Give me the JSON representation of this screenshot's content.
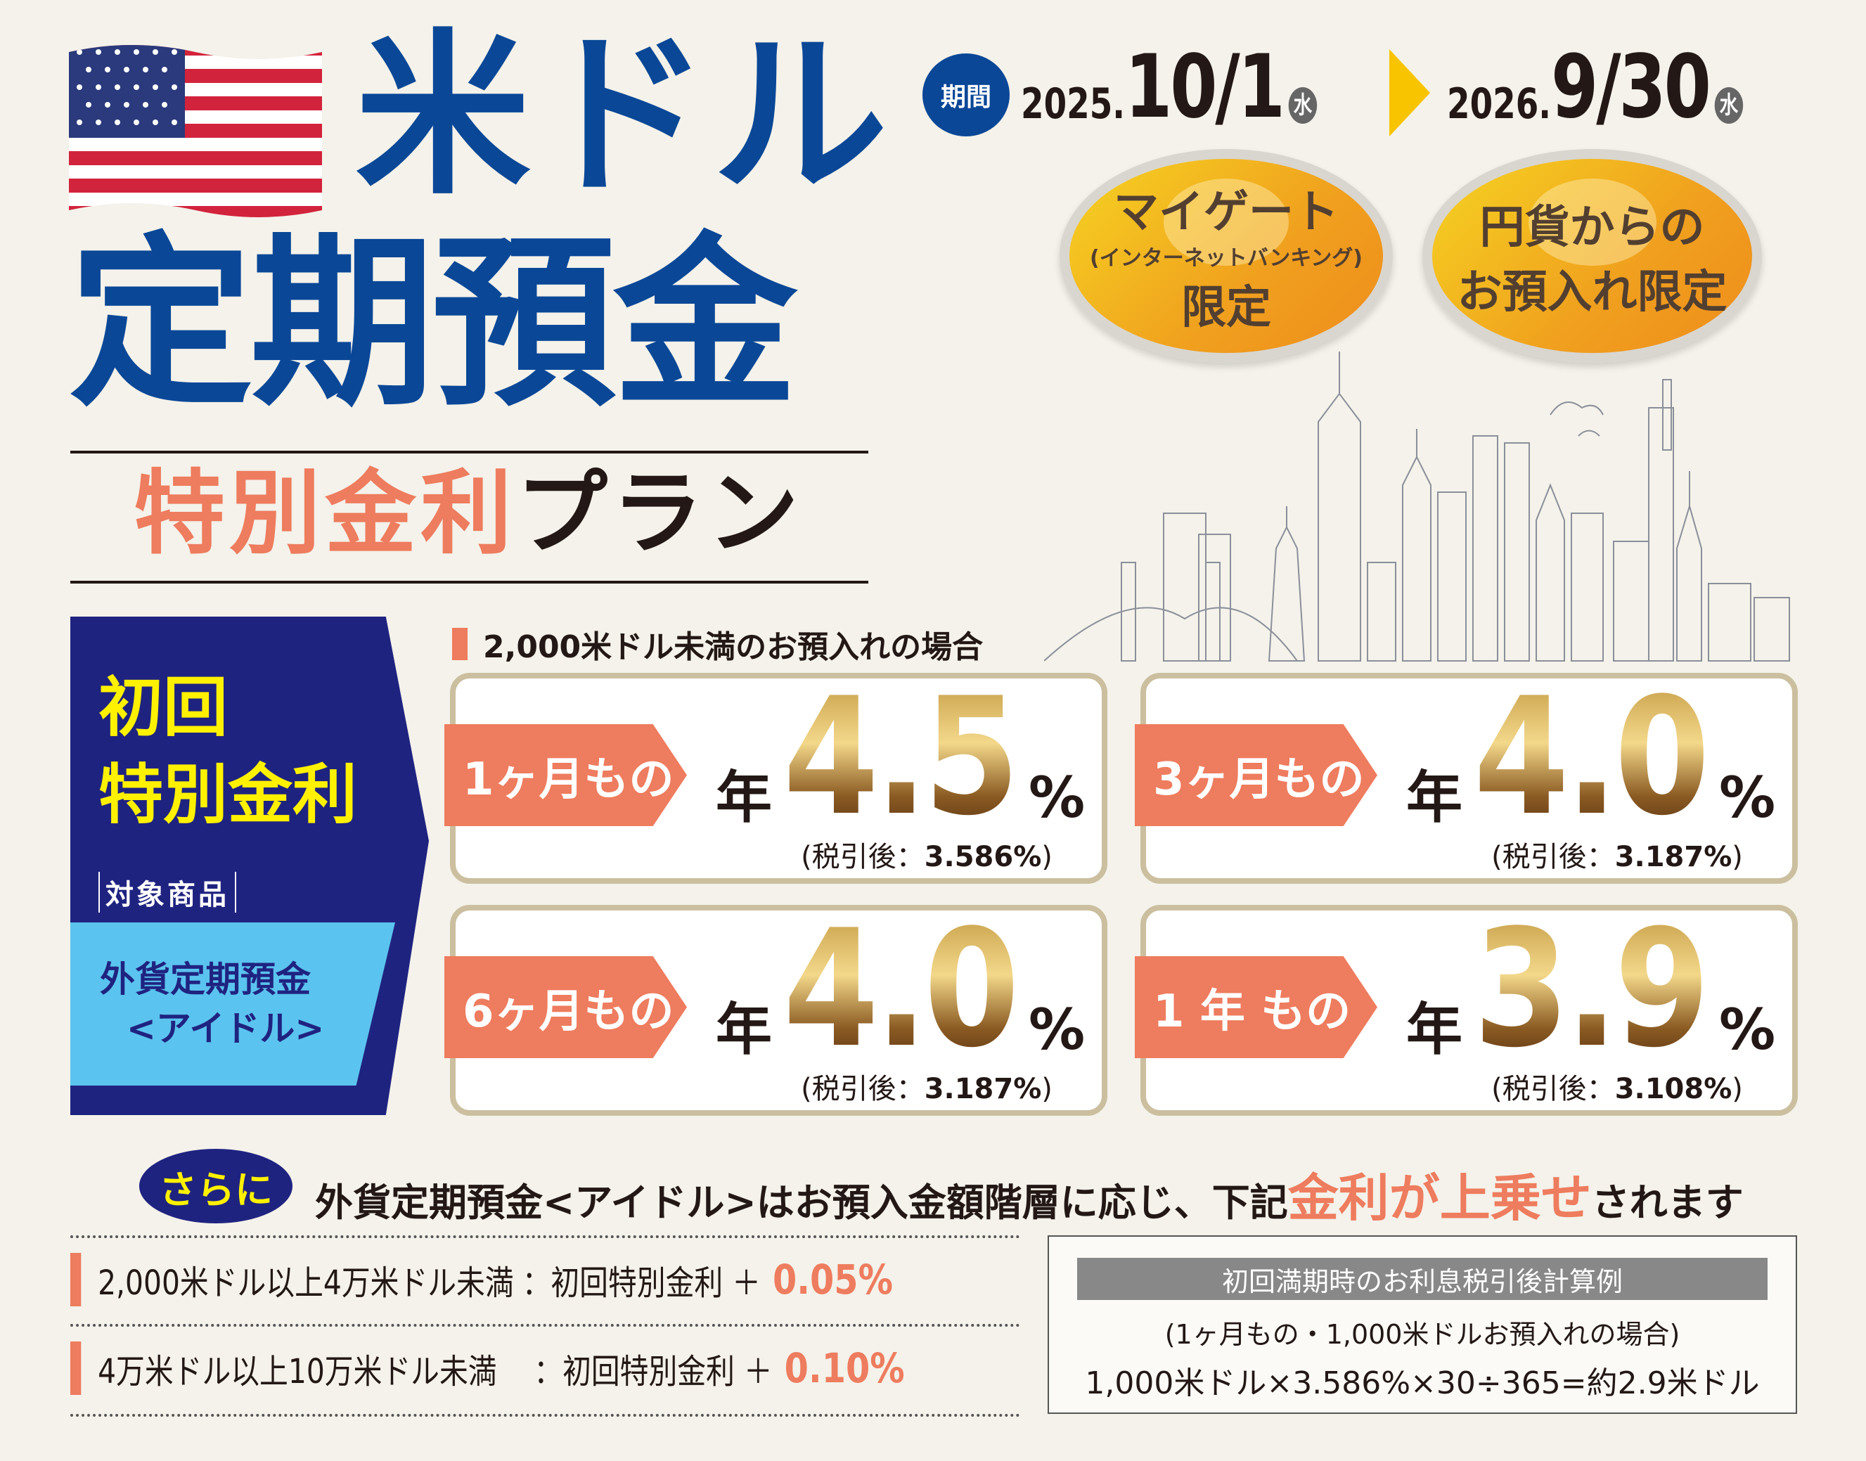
{
  "header": {
    "title_line1": "米ドル",
    "title_line2": "定期預金",
    "plan_highlight": "特別金利",
    "plan_suffix": "プラン"
  },
  "period": {
    "label": "期間",
    "start_year": "2025.",
    "start_md": "10/1",
    "start_dow": "水",
    "end_year": "2026.",
    "end_md": "9/30",
    "end_dow": "水"
  },
  "badges": [
    {
      "line1": "マイゲート",
      "line2": "(インターネットバンキング)",
      "line3": "限定"
    },
    {
      "line1": "円貨からの",
      "line2": "お預入れ限定"
    }
  ],
  "left_panel": {
    "title1": "初回",
    "title2": "特別金利",
    "target_label": "対象商品",
    "product1": "外貨定期預金",
    "product2": "<アイドル>"
  },
  "subheading": "2,000米ドル未満のお預入れの場合",
  "rates": [
    {
      "term": "1ヶ月もの",
      "prefix": "年",
      "rate": "4.5",
      "unit": "%",
      "after_tax_label": "(税引後：",
      "after_tax": "3.586%",
      "close": ")"
    },
    {
      "term": "3ヶ月もの",
      "prefix": "年",
      "rate": "4.0",
      "unit": "%",
      "after_tax_label": "(税引後：",
      "after_tax": "3.187%",
      "close": ")"
    },
    {
      "term": "6ヶ月もの",
      "prefix": "年",
      "rate": "4.0",
      "unit": "%",
      "after_tax_label": "(税引後：",
      "after_tax": "3.187%",
      "close": ")"
    },
    {
      "term": "1 年 もの",
      "prefix": "年",
      "rate": "3.9",
      "unit": "%",
      "after_tax_label": "(税引後：",
      "after_tax": "3.108%",
      "close": ")"
    }
  ],
  "bonus": {
    "bubble": "さらに",
    "text": "外貨定期預金<アイドル>はお預入金額階層に応じ、下記",
    "highlight": "金利が上乗せ",
    "suffix": "されます"
  },
  "tiers": [
    {
      "range": "2,000米ドル以上4万米ドル未満",
      "label": "：初回特別金利 ＋",
      "add": "0.05%"
    },
    {
      "range": "4万米ドル以上10万米ドル未満　",
      "label": "：初回特別金利 ＋",
      "add": "0.10%"
    }
  ],
  "calc": {
    "title": "初回満期時のお利息税引後計算例",
    "condition": "(1ヶ月もの・1,000米ドルお預入れの場合)",
    "formula": "1,000米ドル×3.586%×30÷365=約2.9米ドル"
  },
  "colors": {
    "navy": "#0a4797",
    "indigo": "#1f2380",
    "coral": "#ee7c5e",
    "yellow": "#fff100",
    "sky": "#5bc3ef"
  }
}
